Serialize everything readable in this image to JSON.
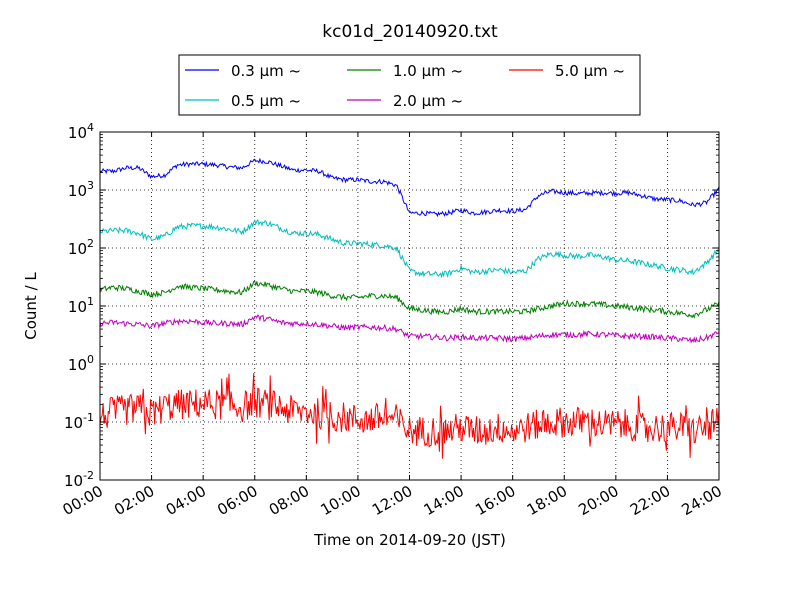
{
  "chart_data": {
    "type": "line",
    "title": "kc01d_20140920.txt",
    "xlabel": "Time on 2014-09-20 (JST)",
    "ylabel": "Count / L",
    "y_scale": "log",
    "ylim": [
      0.01,
      10000
    ],
    "xlim": [
      "00:00",
      "24:00"
    ],
    "x_tick_labels": [
      "00:00",
      "02:00",
      "04:00",
      "06:00",
      "08:00",
      "10:00",
      "12:00",
      "14:00",
      "16:00",
      "18:00",
      "20:00",
      "22:00",
      "24:00"
    ],
    "y_tick_labels": [
      {
        "base": "10",
        "exp": "-2"
      },
      {
        "base": "10",
        "exp": "-1"
      },
      {
        "base": "10",
        "exp": "0"
      },
      {
        "base": "10",
        "exp": "1"
      },
      {
        "base": "10",
        "exp": "2"
      },
      {
        "base": "10",
        "exp": "3"
      },
      {
        "base": "10",
        "exp": "4"
      }
    ],
    "grid": true,
    "legend_position": "top",
    "x_hours": [
      0,
      0.5,
      1,
      1.5,
      2,
      2.5,
      3,
      3.5,
      4,
      4.5,
      5,
      5.5,
      6,
      6.5,
      7,
      7.5,
      8,
      8.5,
      9,
      9.5,
      10,
      10.5,
      11,
      11.5,
      12,
      12.5,
      13,
      13.5,
      14,
      14.5,
      15,
      15.5,
      16,
      16.5,
      17,
      17.5,
      18,
      18.5,
      19,
      19.5,
      20,
      20.5,
      21,
      21.5,
      22,
      22.5,
      23,
      23.5,
      24
    ],
    "series": [
      {
        "name": "0.3 µm ~",
        "color": "#0000ff",
        "noise": 0.04,
        "values": [
          2100,
          2100,
          2400,
          2400,
          1700,
          1800,
          2700,
          2800,
          2800,
          2700,
          2500,
          2400,
          3200,
          3100,
          2600,
          2200,
          2200,
          2100,
          1600,
          1500,
          1500,
          1400,
          1400,
          1200,
          400,
          400,
          380,
          400,
          450,
          400,
          420,
          450,
          430,
          460,
          800,
          950,
          900,
          870,
          880,
          900,
          880,
          900,
          800,
          700,
          680,
          650,
          550,
          600,
          1050
        ]
      },
      {
        "name": "0.5 µm ~",
        "color": "#00bfbf",
        "noise": 0.05,
        "values": [
          190,
          200,
          200,
          180,
          140,
          160,
          230,
          240,
          240,
          230,
          210,
          190,
          280,
          270,
          220,
          180,
          180,
          170,
          140,
          120,
          120,
          115,
          110,
          100,
          40,
          36,
          35,
          36,
          45,
          38,
          40,
          42,
          38,
          40,
          65,
          80,
          75,
          72,
          75,
          70,
          62,
          60,
          55,
          50,
          45,
          42,
          38,
          55,
          95
        ]
      },
      {
        "name": "1.0 µm ~",
        "color": "#008000",
        "noise": 0.05,
        "values": [
          19,
          21,
          20,
          18,
          16,
          17,
          22,
          21,
          20,
          19,
          18,
          17,
          25,
          23,
          20,
          18,
          18,
          17,
          15,
          14,
          14,
          15,
          15,
          14,
          9,
          8.5,
          8,
          8,
          9,
          8,
          8,
          8,
          8,
          8,
          9,
          10,
          11,
          11,
          11,
          10.5,
          10,
          9.5,
          9,
          8.5,
          8,
          7.5,
          7,
          8.5,
          11
        ]
      },
      {
        "name": "2.0 µm ~",
        "color": "#bf00bf",
        "noise": 0.05,
        "values": [
          5,
          5.2,
          5,
          4.8,
          4.5,
          5,
          5.5,
          5.5,
          5.2,
          5,
          5,
          4.8,
          6.5,
          6,
          5.2,
          5,
          5,
          4.8,
          4.5,
          4.2,
          4.3,
          4.3,
          4.2,
          4,
          3,
          3,
          2.9,
          2.8,
          2.9,
          2.8,
          2.8,
          2.8,
          2.7,
          2.8,
          3,
          3.2,
          3.2,
          3.2,
          3.3,
          3.2,
          3.1,
          3,
          3,
          2.9,
          2.8,
          2.7,
          2.5,
          2.8,
          3.5
        ]
      },
      {
        "name": "5.0 µm ~",
        "color": "#ff0000",
        "noise": 0.18,
        "values": [
          0.12,
          0.15,
          0.16,
          0.17,
          0.14,
          0.18,
          0.2,
          0.2,
          0.21,
          0.2,
          0.2,
          0.18,
          0.22,
          0.2,
          0.18,
          0.15,
          0.15,
          0.14,
          0.12,
          0.12,
          0.11,
          0.11,
          0.12,
          0.11,
          0.07,
          0.07,
          0.07,
          0.07,
          0.08,
          0.07,
          0.07,
          0.08,
          0.07,
          0.08,
          0.09,
          0.1,
          0.1,
          0.1,
          0.1,
          0.09,
          0.09,
          0.09,
          0.08,
          0.08,
          0.08,
          0.08,
          0.07,
          0.08,
          0.1
        ]
      }
    ]
  }
}
